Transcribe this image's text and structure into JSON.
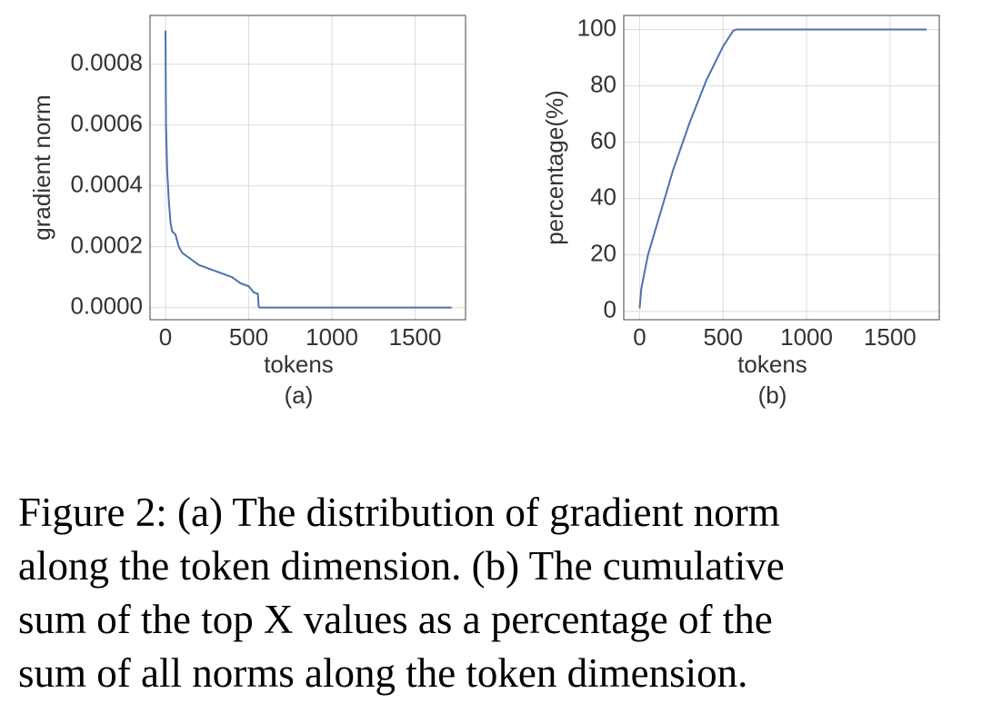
{
  "chart_data": [
    {
      "type": "line",
      "subtitle": "(a)",
      "x_label": "tokens",
      "y_label": "gradient norm",
      "x": [
        0,
        3,
        10,
        20,
        30,
        40,
        60,
        80,
        100,
        150,
        200,
        300,
        400,
        450,
        500,
        530,
        555,
        560,
        565,
        1720
      ],
      "series": [
        {
          "color": "#4c72b0",
          "values": [
            0.00091,
            0.0006,
            0.00045,
            0.00035,
            0.00028,
            0.00025,
            0.00024,
            0.0002,
            0.00018,
            0.00016,
            0.00014,
            0.00012,
            0.0001,
            8e-05,
            7e-05,
            5e-05,
            4.5e-05,
            3e-06,
            0,
            0
          ]
        }
      ],
      "xlim": [
        -93,
        1803
      ],
      "ylim": [
        -4e-05,
        0.00096
      ],
      "xticks": [
        0,
        500,
        1000,
        1500
      ],
      "yticks": [
        {
          "value": 0,
          "label": "0.0000"
        },
        {
          "value": 0.0002,
          "label": "0.0002"
        },
        {
          "value": 0.0004,
          "label": "0.0004"
        },
        {
          "value": 0.0006,
          "label": "0.0006"
        },
        {
          "value": 0.0008,
          "label": "0.0008"
        }
      ],
      "grid": true
    },
    {
      "type": "line",
      "subtitle": "(b)",
      "x_label": "tokens",
      "y_label": "percentage(%)",
      "x": [
        0,
        10,
        50,
        100,
        200,
        300,
        400,
        500,
        560,
        580,
        1720
      ],
      "series": [
        {
          "color": "#4c72b0",
          "values": [
            1,
            8,
            20,
            30,
            50,
            67,
            82,
            94,
            99.5,
            100,
            100
          ]
        }
      ],
      "xlim": [
        -95,
        1795
      ],
      "ylim": [
        -3,
        105
      ],
      "xticks": [
        0,
        500,
        1000,
        1500
      ],
      "yticks": [
        0,
        20,
        40,
        60,
        80,
        100
      ],
      "grid": true
    }
  ],
  "caption": {
    "lines": [
      "Figure 2: (a) The distribution of gradient norm",
      "along the token dimension. (b) The cumulative",
      "sum of the top X values as a percentage of the",
      "sum of all norms along the token dimension."
    ]
  }
}
